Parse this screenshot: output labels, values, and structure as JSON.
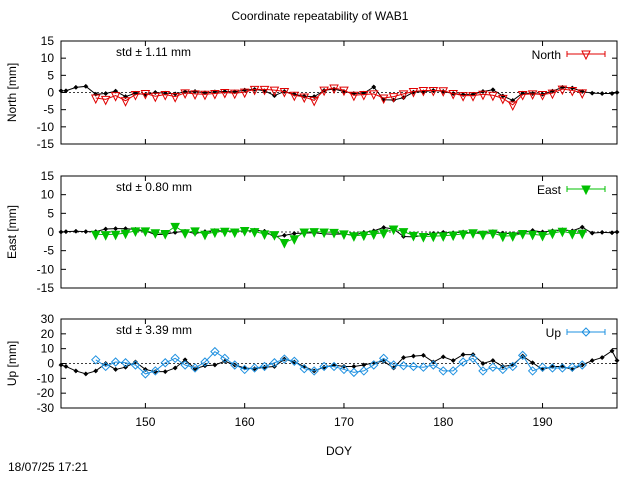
{
  "title": "Coordinate repeatability of WAB1",
  "footer": "18/07/25 17:21",
  "chart_data": [
    {
      "type": "line",
      "title": "",
      "ylabel": "North [mm]",
      "xlabel": "",
      "xlim": [
        141.5,
        197.5
      ],
      "ylim": [
        -15,
        15
      ],
      "yticks": [
        15,
        10,
        5,
        0,
        -5,
        -10,
        -15
      ],
      "xticks": [
        150,
        160,
        170,
        180,
        190
      ],
      "std_text": "std ± 1.11 mm",
      "color": "#e00000",
      "legend": {
        "label": "North",
        "marker": "triangle-down-open",
        "placement": "top-right"
      },
      "series": [
        {
          "name": "North",
          "marker": "triangle-down-open",
          "color": "#e00000",
          "x": [
            145,
            146,
            147,
            148,
            149,
            150,
            151,
            152,
            153,
            154,
            155,
            156,
            157,
            158,
            159,
            160,
            161,
            162,
            163,
            164,
            165,
            166,
            167,
            168,
            169,
            170,
            171,
            172,
            173,
            174,
            175,
            176,
            177,
            178,
            179,
            180,
            181,
            182,
            183,
            184,
            185,
            186,
            187,
            188,
            189,
            190,
            191,
            192,
            193,
            194
          ],
          "y": [
            -1.6,
            -2.0,
            -0.9,
            -2.4,
            -0.6,
            -0.3,
            -1.1,
            -0.6,
            -1.2,
            -0.1,
            -0.4,
            -0.5,
            -0.3,
            0.0,
            -0.2,
            0.1,
            0.9,
            0.9,
            0.7,
            0.3,
            -0.8,
            -1.3,
            -2.3,
            0.7,
            1.3,
            0.7,
            -0.8,
            -0.6,
            -0.4,
            -1.6,
            -1.2,
            -0.4,
            0.3,
            0.6,
            0.6,
            0.5,
            -0.3,
            -0.9,
            -0.9,
            -0.5,
            -0.8,
            -1.7,
            -3.6,
            -0.6,
            -0.4,
            -0.6,
            -0.2,
            1.0,
            0.6,
            -0.1
          ]
        },
        {
          "name": "",
          "marker": "diamond",
          "color": "#000000",
          "x": [
            141.5,
            142,
            143,
            144,
            145,
            146,
            147,
            148,
            149,
            150,
            151,
            152,
            153,
            154,
            155,
            156,
            157,
            158,
            159,
            160,
            161,
            162,
            163,
            164,
            165,
            166,
            167,
            168,
            169,
            170,
            171,
            172,
            173,
            174,
            175,
            176,
            177,
            178,
            179,
            180,
            181,
            182,
            183,
            184,
            185,
            186,
            187,
            188,
            189,
            190,
            191,
            192,
            193,
            194,
            195,
            196,
            197,
            197.5
          ],
          "y": [
            0.5,
            0.5,
            1.5,
            1.8,
            -0.5,
            -0.3,
            0.4,
            -1.2,
            -0.2,
            -0.6,
            0.0,
            -0.2,
            -0.4,
            0.2,
            0.3,
            -0.1,
            0.2,
            0.3,
            0.2,
            0.7,
            0.9,
            0.5,
            -0.9,
            0.3,
            -0.5,
            -1.1,
            -1.2,
            0.6,
            1.0,
            0.3,
            -0.3,
            -0.2,
            1.6,
            -2.1,
            -2.2,
            -1.5,
            0.1,
            0.2,
            0.6,
            0.3,
            -0.3,
            -0.6,
            -0.5,
            0.3,
            0.8,
            -1.0,
            -2.3,
            -0.2,
            -0.3,
            -0.5,
            0.4,
            1.5,
            1.3,
            0.3,
            -0.2,
            -0.3,
            -0.3,
            0.0
          ]
        }
      ]
    },
    {
      "type": "line",
      "title": "",
      "ylabel": "East [mm]",
      "xlabel": "",
      "xlim": [
        141.5,
        197.5
      ],
      "ylim": [
        -15,
        15
      ],
      "yticks": [
        15,
        10,
        5,
        0,
        -5,
        -10,
        -15
      ],
      "xticks": [
        150,
        160,
        170,
        180,
        190
      ],
      "std_text": "std ± 0.80 mm",
      "color": "#00c000",
      "legend": {
        "label": "East",
        "marker": "triangle-down-filled",
        "placement": "top-right"
      },
      "series": [
        {
          "name": "East",
          "marker": "triangle-down-filled",
          "color": "#00c000",
          "x": [
            145,
            146,
            147,
            148,
            149,
            150,
            151,
            152,
            153,
            154,
            155,
            156,
            157,
            158,
            159,
            160,
            161,
            162,
            163,
            164,
            165,
            166,
            167,
            168,
            169,
            170,
            171,
            172,
            173,
            174,
            175,
            176,
            177,
            178,
            179,
            180,
            181,
            182,
            183,
            184,
            185,
            186,
            187,
            188,
            189,
            190,
            191,
            192,
            193,
            194
          ],
          "y": [
            -0.6,
            -0.7,
            -0.6,
            -0.3,
            0.3,
            0.3,
            -0.2,
            -0.4,
            1.5,
            -0.2,
            0.3,
            -0.6,
            0.0,
            0.2,
            0.0,
            0.4,
            0.1,
            -0.5,
            -0.7,
            -2.8,
            -1.8,
            0.0,
            0.1,
            0.0,
            -0.1,
            -0.5,
            -1.0,
            -0.8,
            -0.5,
            -0.2,
            0.8,
            0.1,
            -0.9,
            -1.2,
            -1.1,
            -1.0,
            -0.8,
            -0.5,
            -0.2,
            -0.6,
            -0.3,
            -1.1,
            -1.0,
            -0.4,
            -0.6,
            -0.9,
            -0.3,
            0.2,
            -0.4,
            -0.3
          ]
        },
        {
          "name": "",
          "marker": "diamond",
          "color": "#000000",
          "x": [
            141.5,
            142,
            143,
            144,
            145,
            146,
            147,
            148,
            149,
            150,
            151,
            152,
            153,
            154,
            155,
            156,
            157,
            158,
            159,
            160,
            161,
            162,
            163,
            164,
            165,
            166,
            167,
            168,
            169,
            170,
            171,
            172,
            173,
            174,
            175,
            176,
            177,
            178,
            179,
            180,
            181,
            182,
            183,
            184,
            185,
            186,
            187,
            188,
            189,
            190,
            191,
            192,
            193,
            194,
            195,
            196,
            197,
            197.5
          ],
          "y": [
            0.0,
            0.1,
            0.2,
            0.1,
            0.1,
            0.8,
            0.9,
            0.9,
            0.7,
            0.3,
            -0.7,
            -0.6,
            -0.1,
            0.2,
            -0.4,
            0.1,
            0.4,
            0.2,
            0.3,
            0.2,
            0.5,
            0.2,
            -1.3,
            -0.9,
            -0.4,
            -0.3,
            -0.2,
            -0.5,
            -0.6,
            -0.5,
            -0.9,
            -0.1,
            0.3,
            1.2,
            0.8,
            -1.2,
            -1.3,
            -0.9,
            -0.4,
            -0.1,
            -0.2,
            0.0,
            -0.4,
            -0.2,
            0.1,
            -0.3,
            -0.5,
            -0.2,
            0.4,
            0.0,
            0.3,
            0.6,
            0.3,
            1.3,
            -0.3,
            -0.1,
            -0.2,
            0.0
          ]
        }
      ]
    },
    {
      "type": "line",
      "title": "",
      "ylabel": "Up [mm]",
      "xlabel": "DOY",
      "xlim": [
        141.5,
        197.5
      ],
      "ylim": [
        -30,
        30
      ],
      "yticks": [
        30,
        20,
        10,
        0,
        -10,
        -20,
        -30
      ],
      "xticks": [
        150,
        160,
        170,
        180,
        190
      ],
      "std_text": "std ± 3.39 mm",
      "color": "#1e90e0",
      "legend": {
        "label": "Up",
        "marker": "diamond-open",
        "placement": "top-right"
      },
      "series": [
        {
          "name": "Up",
          "marker": "diamond-open",
          "color": "#1e90e0",
          "x": [
            145,
            146,
            147,
            148,
            149,
            150,
            151,
            152,
            153,
            154,
            155,
            156,
            157,
            158,
            159,
            160,
            161,
            162,
            163,
            164,
            165,
            166,
            167,
            168,
            169,
            170,
            171,
            172,
            173,
            174,
            175,
            176,
            177,
            178,
            179,
            180,
            181,
            182,
            183,
            184,
            185,
            186,
            187,
            188,
            189,
            190,
            191,
            192,
            193,
            194
          ],
          "y": [
            2.5,
            -2.0,
            1.0,
            0.5,
            -1.0,
            -7.0,
            -5.0,
            0.5,
            3.5,
            -1.0,
            -3.0,
            1.0,
            8.0,
            3.5,
            -1.0,
            -4.0,
            -3.0,
            -2.0,
            0.5,
            3.0,
            1.5,
            -3.5,
            -5.0,
            -2.0,
            -2.0,
            -4.0,
            -6.0,
            -5.0,
            -1.0,
            3.5,
            -1.0,
            -1.5,
            -2.0,
            -2.5,
            -1.0,
            -5.0,
            -5.0,
            1.0,
            3.5,
            -5.0,
            -2.5,
            -4.0,
            -2.0,
            5.5,
            -5.0,
            -2.5,
            -3.0,
            -3.0,
            -2.5,
            -1.0
          ]
        },
        {
          "name": "",
          "marker": "diamond",
          "color": "#000000",
          "x": [
            141.5,
            142,
            143,
            144,
            145,
            146,
            147,
            148,
            149,
            150,
            151,
            152,
            153,
            154,
            155,
            156,
            157,
            158,
            159,
            160,
            161,
            162,
            163,
            164,
            165,
            166,
            167,
            168,
            169,
            170,
            171,
            172,
            173,
            174,
            175,
            176,
            177,
            178,
            179,
            180,
            181,
            182,
            183,
            184,
            185,
            186,
            187,
            188,
            189,
            190,
            191,
            192,
            193,
            194,
            195,
            196,
            197,
            197.5
          ],
          "y": [
            -1.0,
            -2.0,
            -5.0,
            -7.0,
            -5.0,
            0.0,
            -4.0,
            -2.5,
            1.0,
            -4.0,
            -5.5,
            -5.5,
            -3.0,
            2.5,
            -3.5,
            -1.5,
            -1.0,
            1.5,
            -1.0,
            -3.0,
            -3.5,
            -2.5,
            -2.0,
            3.0,
            1.0,
            -2.0,
            -5.0,
            -2.5,
            -1.0,
            -2.0,
            -2.0,
            -1.0,
            0.5,
            1.5,
            -3.0,
            4.0,
            5.0,
            5.5,
            1.0,
            4.5,
            2.0,
            6.0,
            6.0,
            0.0,
            2.0,
            -2.0,
            -1.0,
            5.0,
            0.5,
            -4.0,
            -2.0,
            -2.0,
            -4.0,
            -1.0,
            2.0,
            4.0,
            8.5,
            2.0
          ]
        }
      ]
    }
  ]
}
